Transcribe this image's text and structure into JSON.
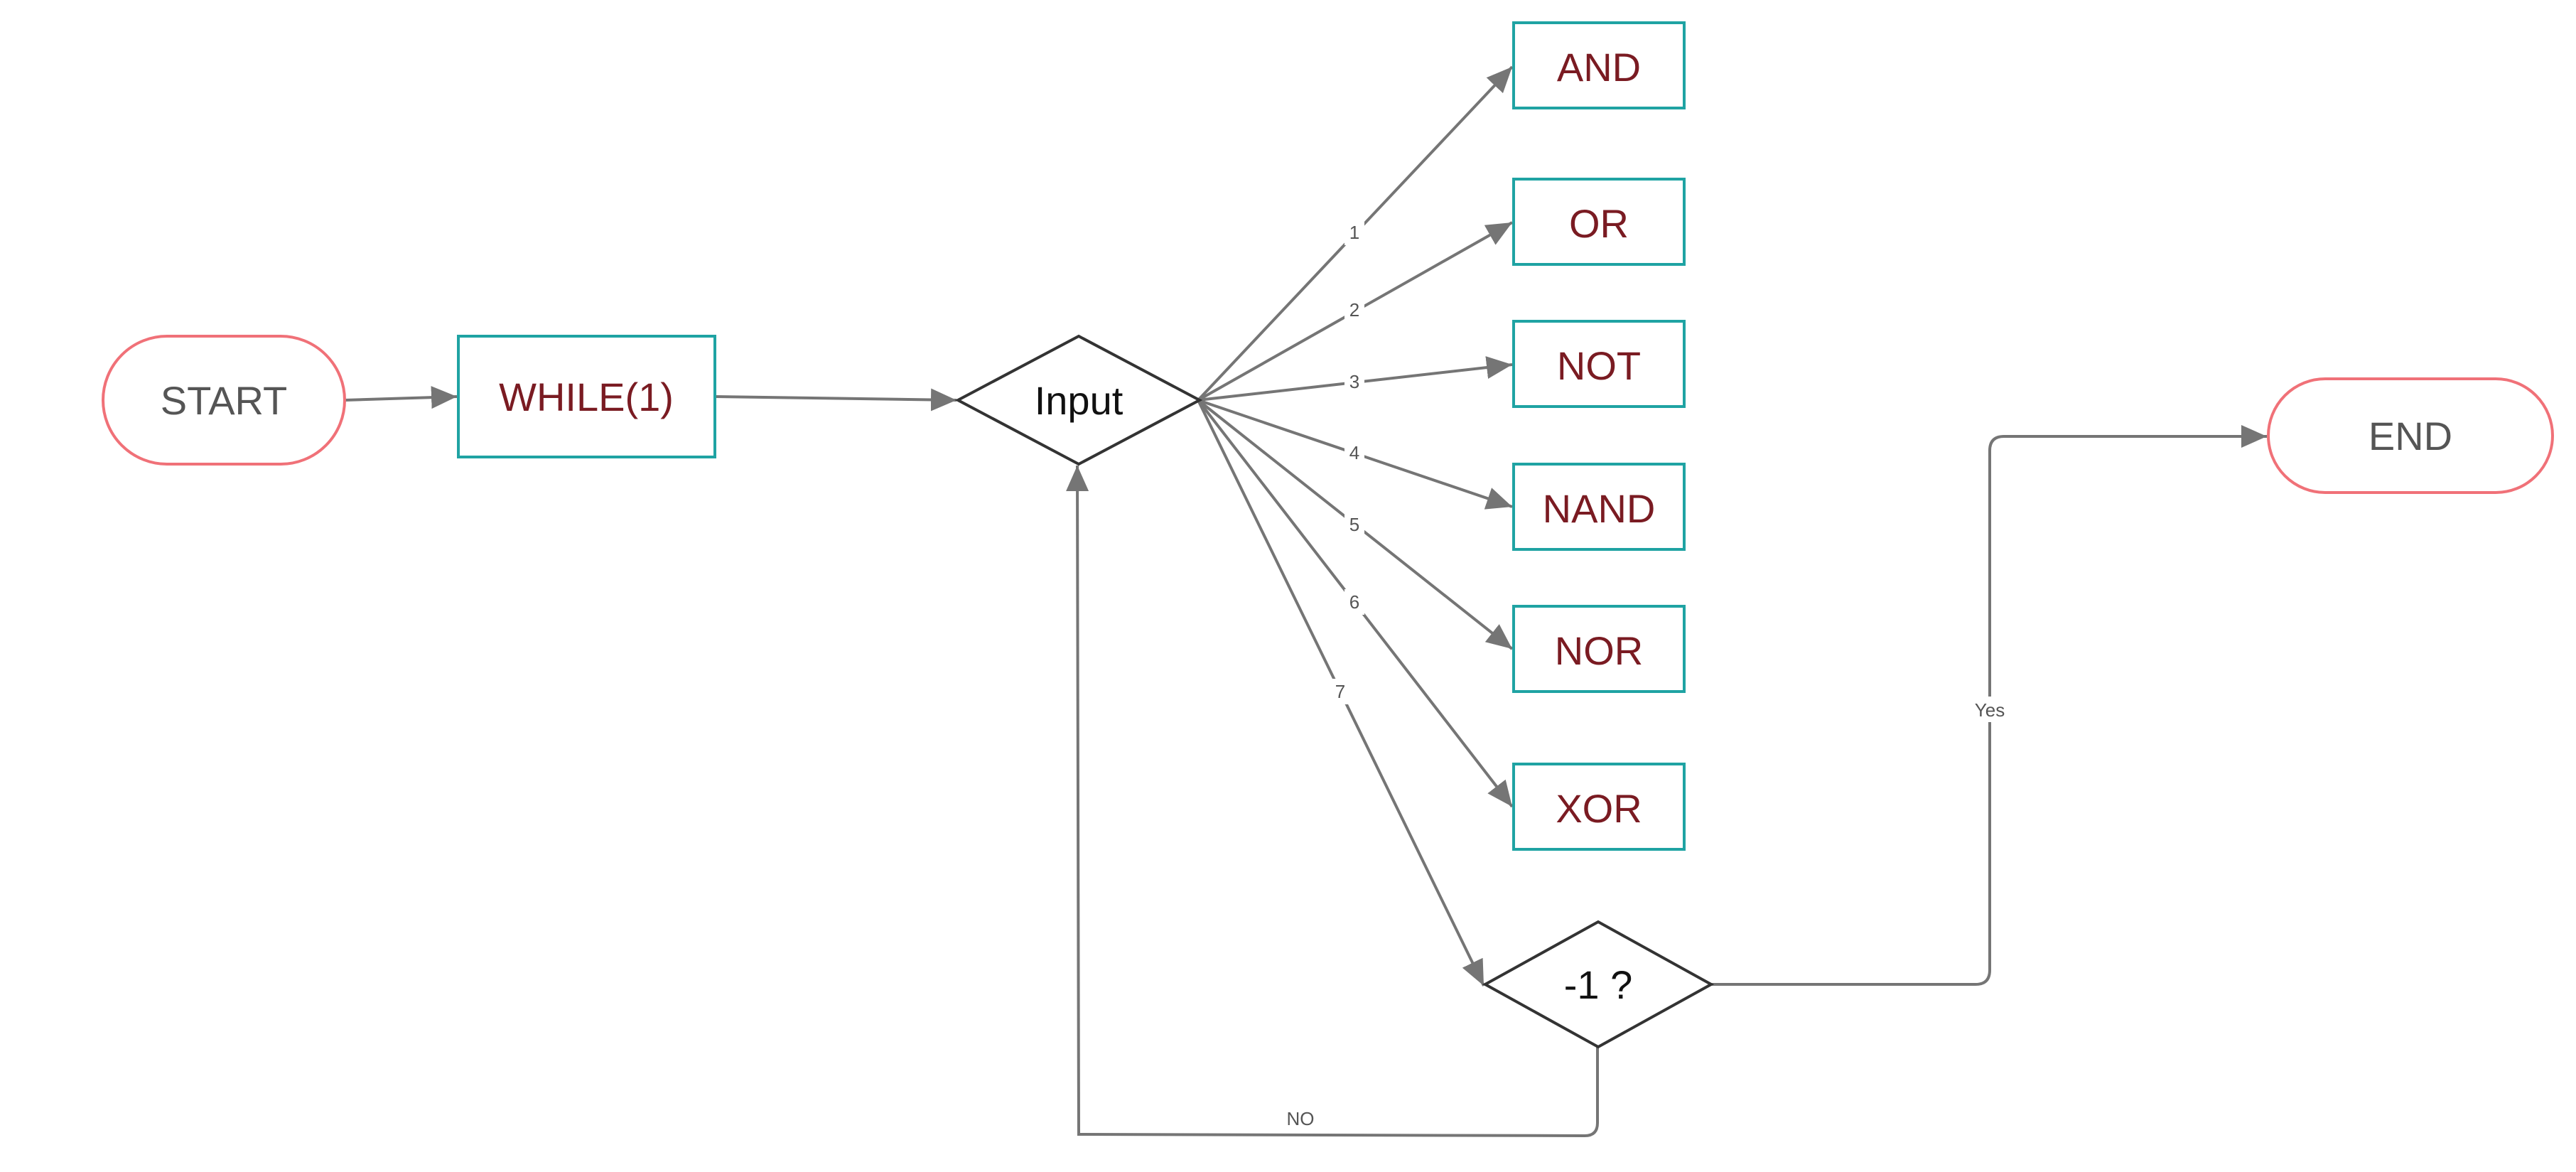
{
  "colors": {
    "terminal_border": "#f07178",
    "process_border": "#1fa3a3",
    "process_text": "#7a1b22",
    "decision_border": "#333333",
    "edge": "#757575",
    "terminal_text": "#555555",
    "decision_text": "#111111"
  },
  "nodes": {
    "start": "START",
    "while": "WHILE(1)",
    "input": "Input",
    "and": "AND",
    "or": "OR",
    "not": "NOT",
    "nand": "NAND",
    "nor": "NOR",
    "xor": "XOR",
    "check": "-1 ?",
    "end": "END"
  },
  "edge_labels": {
    "to_and": "1",
    "to_or": "2",
    "to_not": "3",
    "to_nand": "4",
    "to_nor": "5",
    "to_xor": "6",
    "to_check": "7",
    "yes": "Yes",
    "no": "NO"
  }
}
